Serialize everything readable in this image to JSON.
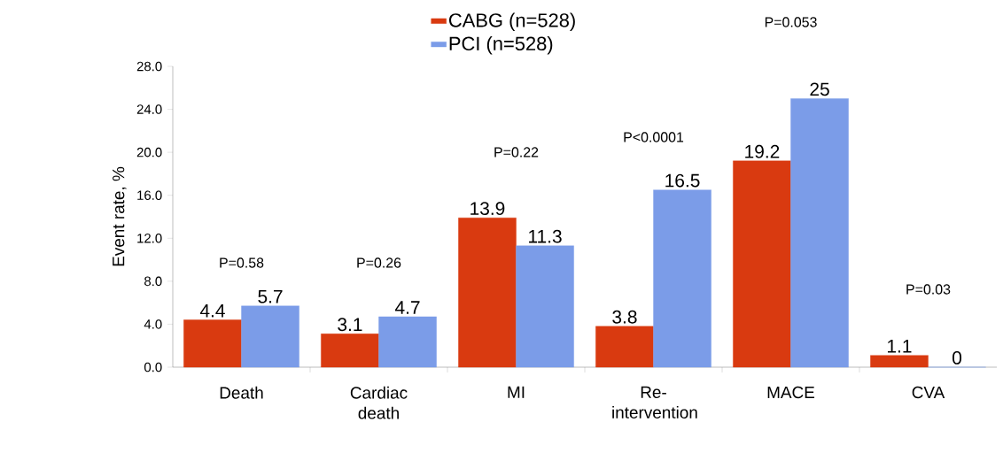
{
  "chart_data": {
    "type": "bar",
    "categories": [
      "Death",
      "Cardiac death",
      "MI",
      "Re-intervention",
      "MACE",
      "CVA"
    ],
    "ylabel": "Event rate, %",
    "ylim": [
      0,
      28
    ],
    "yticks": [
      {
        "value": 0,
        "label": "0.0"
      },
      {
        "value": 4,
        "label": "4.0"
      },
      {
        "value": 8,
        "label": "8.0"
      },
      {
        "value": 12,
        "label": "12.0"
      },
      {
        "value": 16,
        "label": "16.0"
      },
      {
        "value": 20,
        "label": "20.0"
      },
      {
        "value": 24,
        "label": "24.0"
      },
      {
        "value": 28,
        "label": "28.0"
      }
    ],
    "series": [
      {
        "name": "CABG (n=528)",
        "color": "#d93a10",
        "values": [
          4.4,
          3.1,
          13.9,
          3.8,
          19.2,
          1.1
        ],
        "value_labels": [
          "4.4",
          "3.1",
          "13.9",
          "3.8",
          "19.2",
          "1.1"
        ]
      },
      {
        "name": "PCI (n=528)",
        "color": "#7b9ce8",
        "values": [
          5.7,
          4.7,
          11.3,
          16.5,
          25,
          0
        ],
        "value_labels": [
          "5.7",
          "4.7",
          "11.3",
          "16.5",
          "25",
          "0"
        ]
      }
    ],
    "annotations": [
      "P=0.58",
      "P=0.26",
      "P=0.22",
      "P<0.0001",
      "P=0.053",
      "P=0.03"
    ],
    "legend": "top",
    "grid": false
  }
}
